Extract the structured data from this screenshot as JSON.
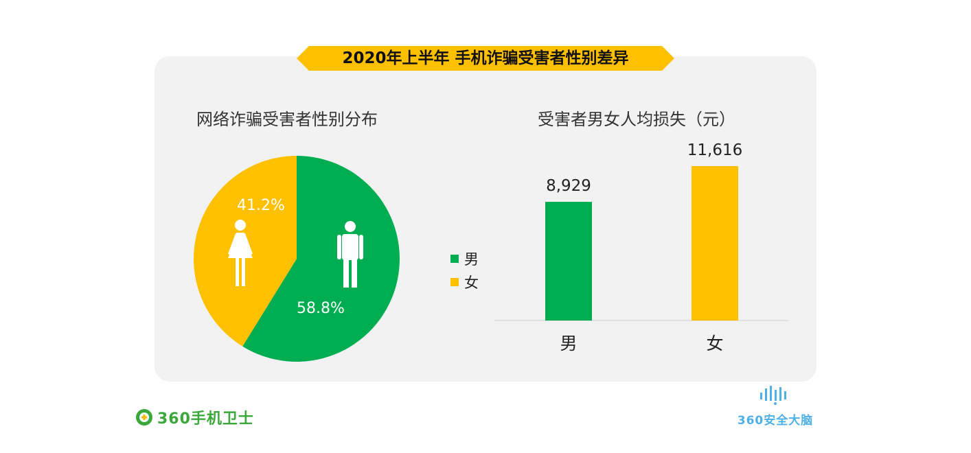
{
  "header": {
    "title": "2020年上半年 手机诈骗受害者性别差异"
  },
  "colors": {
    "male": "#00ad50",
    "female": "#ffc000",
    "banner": "#ffc000",
    "panel": "#f2f2f2"
  },
  "chart_data": [
    {
      "type": "pie",
      "title": "网络诈骗受害者性别分布",
      "slices": [
        {
          "name": "男",
          "value": 58.8,
          "label": "58.8%",
          "color": "#00ad50",
          "icon": "male-figure-icon"
        },
        {
          "name": "女",
          "value": 41.2,
          "label": "41.2%",
          "color": "#ffc000",
          "icon": "female-figure-icon"
        }
      ],
      "legend": {
        "position": "right",
        "items": [
          "男",
          "女"
        ]
      }
    },
    {
      "type": "bar",
      "title": "受害者男女人均损失（元）",
      "categories": [
        "男",
        "女"
      ],
      "values": [
        8929,
        11616
      ],
      "value_labels": [
        "8,929",
        "11,616"
      ],
      "colors": [
        "#00ad50",
        "#ffc000"
      ],
      "ylim": [
        0,
        11616
      ],
      "grid": false
    }
  ],
  "footer": {
    "left_brand": "360手机卫士",
    "left_icon": "360-shield-logo-icon",
    "right_brand": "360安全大脑",
    "right_icon": "soundwave-logo-icon"
  }
}
